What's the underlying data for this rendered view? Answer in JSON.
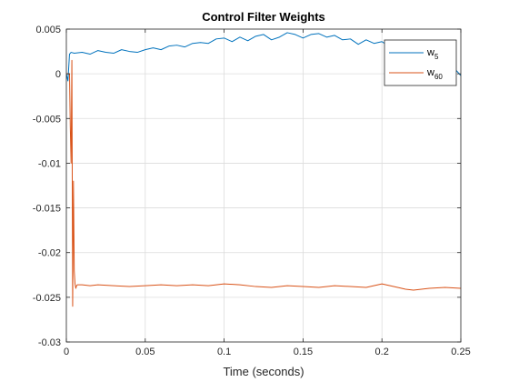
{
  "chart_data": {
    "type": "line",
    "title": "Control Filter Weights",
    "xlabel": "Time (seconds)",
    "ylabel": "",
    "xlim": [
      0,
      0.25
    ],
    "ylim": [
      -0.03,
      0.005
    ],
    "x_ticks": [
      0,
      0.05,
      0.1,
      0.15,
      0.2,
      0.25
    ],
    "x_tick_labels": [
      "0",
      "0.05",
      "0.1",
      "0.15",
      "0.2",
      "0.25"
    ],
    "y_ticks": [
      0.005,
      0,
      -0.005,
      -0.01,
      -0.015,
      -0.02,
      -0.025,
      -0.03
    ],
    "y_tick_labels": [
      "0.005",
      "0",
      "-0.005",
      "-0.01",
      "-0.015",
      "-0.02",
      "-0.025",
      "-0.03"
    ],
    "grid": true,
    "legend_position": "top-right",
    "series": [
      {
        "name": "w",
        "subscript": "5",
        "color": "#0072BD",
        "x": [
          0,
          0.001,
          0.002,
          0.003,
          0.005,
          0.01,
          0.015,
          0.02,
          0.025,
          0.03,
          0.035,
          0.04,
          0.045,
          0.05,
          0.055,
          0.06,
          0.065,
          0.07,
          0.075,
          0.08,
          0.085,
          0.09,
          0.095,
          0.1,
          0.105,
          0.11,
          0.115,
          0.12,
          0.125,
          0.13,
          0.135,
          0.14,
          0.145,
          0.15,
          0.155,
          0.16,
          0.165,
          0.17,
          0.175,
          0.18,
          0.185,
          0.19,
          0.195,
          0.2,
          0.205,
          0.21,
          0.215,
          0.22,
          0.225,
          0.23,
          0.235,
          0.24,
          0.245,
          0.25
        ],
        "y": [
          0,
          -0.0008,
          0.0022,
          0.0024,
          0.0023,
          0.0024,
          0.0022,
          0.0026,
          0.0024,
          0.0023,
          0.0027,
          0.0025,
          0.0024,
          0.0027,
          0.0029,
          0.0027,
          0.0031,
          0.0032,
          0.003,
          0.0034,
          0.0035,
          0.0034,
          0.0039,
          0.004,
          0.0036,
          0.0041,
          0.0037,
          0.0042,
          0.0044,
          0.0038,
          0.0041,
          0.0046,
          0.0044,
          0.004,
          0.0044,
          0.0045,
          0.0041,
          0.0043,
          0.0038,
          0.0039,
          0.0033,
          0.0038,
          0.0034,
          0.0036,
          0.003,
          0.0034,
          0.0029,
          0.0033,
          0.0027,
          0.0023,
          0.0022,
          0.0016,
          0.0008,
          -0.0002
        ]
      },
      {
        "name": "w",
        "subscript": "60",
        "color": "#D95319",
        "x": [
          0,
          0.001,
          0.002,
          0.0025,
          0.003,
          0.0035,
          0.004,
          0.0045,
          0.005,
          0.0055,
          0.006,
          0.0065,
          0.007,
          0.008,
          0.01,
          0.015,
          0.02,
          0.03,
          0.04,
          0.05,
          0.06,
          0.07,
          0.08,
          0.09,
          0.1,
          0.11,
          0.12,
          0.13,
          0.14,
          0.15,
          0.16,
          0.17,
          0.18,
          0.19,
          0.2,
          0.21,
          0.215,
          0.22,
          0.23,
          0.24,
          0.25
        ],
        "y": [
          0,
          0,
          0,
          -0.006,
          -0.01,
          0.0015,
          -0.026,
          -0.012,
          -0.022,
          -0.0235,
          -0.024,
          -0.0237,
          -0.0236,
          -0.0236,
          -0.0236,
          -0.0237,
          -0.0236,
          -0.0237,
          -0.0238,
          -0.0237,
          -0.0236,
          -0.0237,
          -0.0236,
          -0.0237,
          -0.0235,
          -0.0236,
          -0.0238,
          -0.0239,
          -0.0237,
          -0.0238,
          -0.0239,
          -0.0237,
          -0.0238,
          -0.0239,
          -0.0235,
          -0.0239,
          -0.0241,
          -0.0242,
          -0.024,
          -0.0239,
          -0.024
        ]
      }
    ]
  }
}
